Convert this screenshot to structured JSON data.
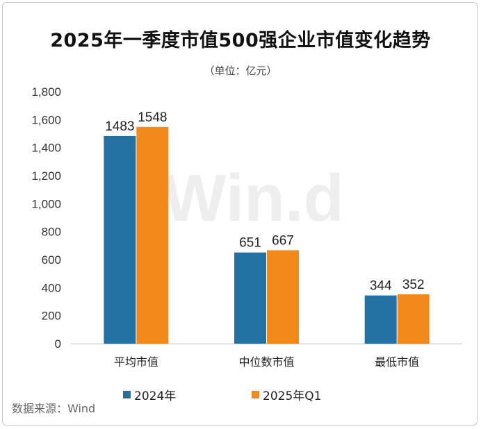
{
  "title": "2025年一季度市值500强企业市值变化趋势",
  "subtitle": "（单位：亿元）",
  "source": "数据来源：Wind",
  "watermark": "Win.d",
  "colors": {
    "series_2024": "#2471a3",
    "series_2025": "#f28a1b"
  },
  "chart_data": {
    "type": "bar",
    "title": "2025年一季度市值500强企业市值变化趋势",
    "categories": [
      "平均市值",
      "中位数市值",
      "最低市值"
    ],
    "series": [
      {
        "name": "2024年",
        "values": [
          1483,
          651,
          344
        ]
      },
      {
        "name": "2025年Q1",
        "values": [
          1548,
          667,
          352
        ]
      }
    ],
    "ylim": [
      0,
      1800
    ],
    "yticks": [
      "0",
      "200",
      "400",
      "600",
      "800",
      "1,000",
      "1,200",
      "1,400",
      "1,600",
      "1,800"
    ],
    "ytick_values": [
      0,
      200,
      400,
      600,
      800,
      1000,
      1200,
      1400,
      1600,
      1800
    ],
    "grid": false,
    "legend_position": "bottom"
  }
}
